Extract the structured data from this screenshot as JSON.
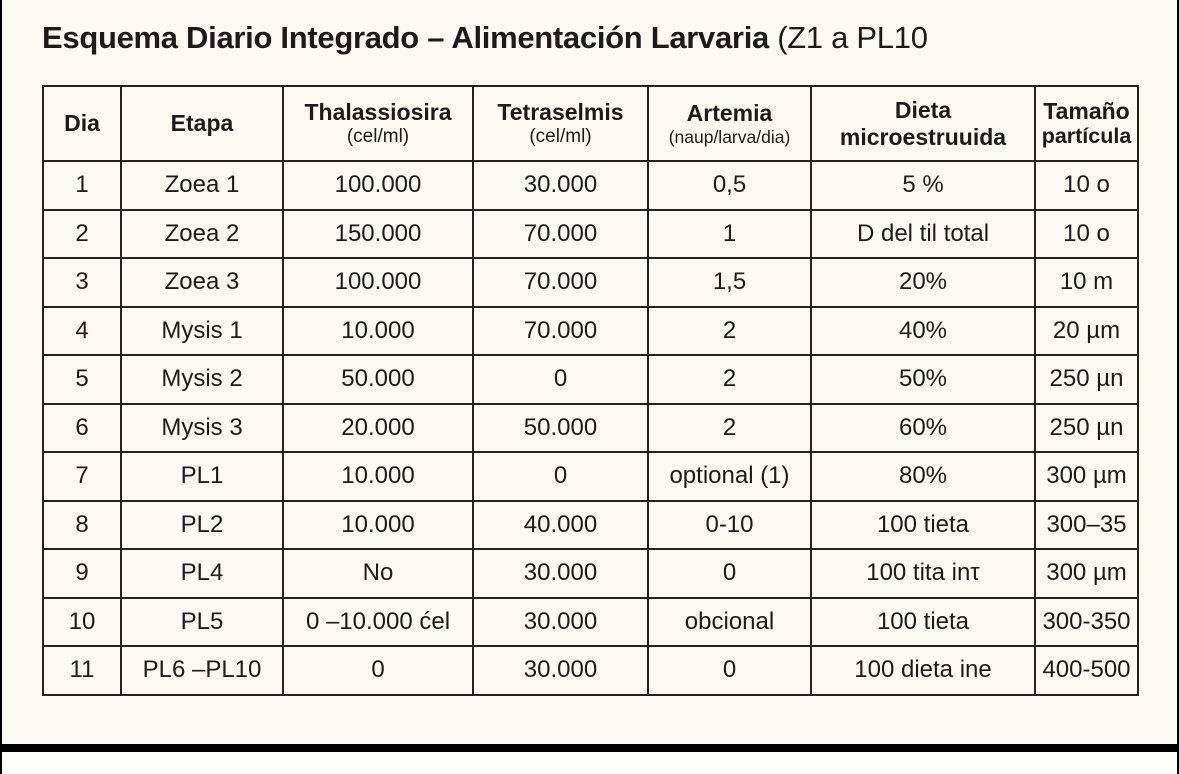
{
  "title": {
    "main": "Esquema Diario Integrado – Alimentación Larvaria",
    "suffix": " (Z1 a PL10"
  },
  "colors": {
    "background": "#fbfaf2",
    "text": "#1b1b1b",
    "table_border": "#222222",
    "bottom_bar": "#000000"
  },
  "table": {
    "headers": [
      {
        "line1": "Dia",
        "line2": ""
      },
      {
        "line1": "Etapa",
        "line2": ""
      },
      {
        "line1": "Thalassiosira",
        "line2": "(cel/ml)"
      },
      {
        "line1": "Tetraselmis",
        "line2": "(cel/ml)"
      },
      {
        "line1": "Artemia",
        "line2": "(naup/larva/dia)"
      },
      {
        "line1": "Dieta",
        "line2": "microestruuida"
      },
      {
        "line1": "Tamaño",
        "line2": "partícula"
      }
    ],
    "rows": [
      [
        "1",
        "Zoea 1",
        "100.000",
        "30.000",
        "0,5",
        "5 %",
        "10 o"
      ],
      [
        "2",
        "Zoea 2",
        "150.000",
        "70.000",
        "1",
        "D del til total",
        "10 o"
      ],
      [
        "3",
        "Zoea 3",
        "100.000",
        "70.000",
        "1,5",
        "20%",
        "10 m"
      ],
      [
        "4",
        "Mysis 1",
        "10.000",
        "70.000",
        "2",
        "40%",
        "20 µm"
      ],
      [
        "5",
        "Mysis 2",
        "50.000",
        "0",
        "2",
        "50%",
        "250 µn"
      ],
      [
        "6",
        "Mysis 3",
        "20.000",
        "50.000",
        "2",
        "60%",
        "250 µn"
      ],
      [
        "7",
        "PL1",
        "10.000",
        "0",
        "optional (1)",
        "80%",
        "300 µm"
      ],
      [
        "8",
        "PL2",
        "10.000",
        "40.000",
        "0-10",
        "100 tieta",
        "300–35"
      ],
      [
        "9",
        "PL4",
        "No",
        "30.000",
        "0",
        "100 tita inτ",
        "300 µm"
      ],
      [
        "10",
        "PL5",
        "0 –10.000 ćel",
        "30.000",
        "obcional",
        "100 tieta",
        "300-350"
      ],
      [
        "11",
        "PL6 –PL10",
        "0",
        "30.000",
        "0",
        "100 dieta ine",
        "400-500"
      ]
    ]
  }
}
